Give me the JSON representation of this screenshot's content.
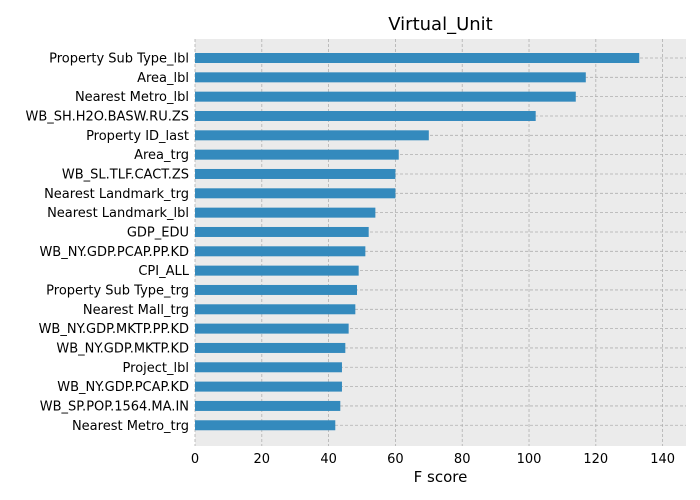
{
  "chart_data": {
    "type": "bar",
    "orientation": "horizontal",
    "title": "Virtual_Unit",
    "xlabel": "F score",
    "ylabel": "",
    "xlim": [
      0,
      147
    ],
    "xticks": [
      0,
      20,
      40,
      60,
      80,
      100,
      120,
      140
    ],
    "grid": true,
    "categories": [
      "Property Sub Type_lbl",
      "Area_lbl",
      "Nearest Metro_lbl",
      "WB_SH.H2O.BASW.RU.ZS",
      "Property ID_last",
      "Area_trg",
      "WB_SL.TLF.CACT.ZS",
      "Nearest Landmark_trg",
      "Nearest Landmark_lbl",
      "GDP_EDU",
      "WB_NY.GDP.PCAP.PP.KD",
      "CPI_ALL",
      "Property Sub Type_trg",
      "Nearest Mall_trg",
      "WB_NY.GDP.MKTP.PP.KD",
      "WB_NY.GDP.MKTP.KD",
      "Project_lbl",
      "WB_NY.GDP.PCAP.KD",
      "WB_SP.POP.1564.MA.IN",
      "Nearest Metro_trg"
    ],
    "values": [
      133,
      117,
      114,
      102,
      70,
      61,
      60,
      60,
      54,
      52,
      51,
      49,
      48.5,
      48,
      46,
      45,
      44,
      44,
      43.5,
      42
    ],
    "colors": {
      "bar": "#348abd",
      "background": "#ebebeb",
      "grid": "#b0b0b0",
      "spine": "#bcbcbc"
    }
  }
}
